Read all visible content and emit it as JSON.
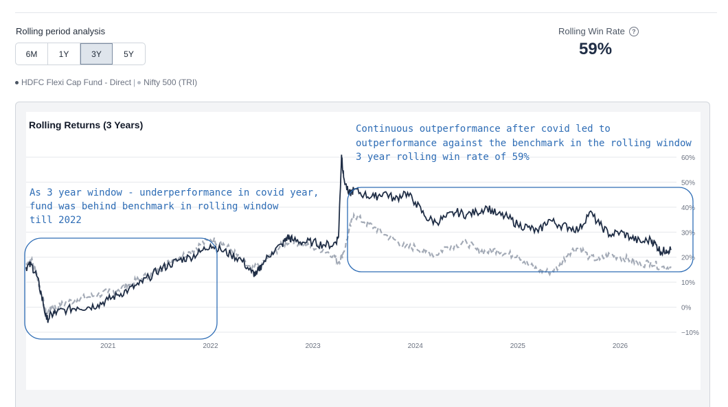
{
  "header": {
    "section_label": "Rolling period analysis",
    "periods": [
      "6M",
      "1Y",
      "3Y",
      "5Y"
    ],
    "active_period": "3Y",
    "win_rate_label": "Rolling Win Rate",
    "win_rate_help": "?",
    "win_rate_value": "59%"
  },
  "legend": {
    "fund": "HDFC Flexi Cap Fund - Direct",
    "separator": "|",
    "benchmark": "Nifty 500 (TRI)"
  },
  "colors": {
    "fund": "#1f2d45",
    "benchmark": "#a3aab6",
    "annotation": "#2d6cb5",
    "grid": "#e5e7eb"
  },
  "annotations": [
    "Continuous outperformance after covid led to",
    "outperformance against the benchmark in the rolling window",
    "3 year rolling win rate of 59%",
    "As 3 year window - underperformance in covid year,",
    "fund was behind benchmark in rolling window",
    "till 2022"
  ],
  "chart_data": {
    "type": "line",
    "title": "Rolling Returns (3 Years)",
    "y_tick_labels": [
      "60%",
      "50%",
      "40%",
      "30%",
      "20%",
      "10%",
      "0%",
      "−10%"
    ],
    "y_ticks": [
      60,
      50,
      40,
      30,
      20,
      10,
      0,
      -10
    ],
    "x_tick_labels": [
      "2021",
      "2022",
      "2023",
      "2024",
      "2025",
      "2026"
    ],
    "x_ticks": [
      2021,
      2022,
      2023,
      2024,
      2025,
      2026
    ],
    "xlim": [
      2020.2,
      2026.55
    ],
    "ylim": [
      -10,
      60
    ],
    "grid": true,
    "series": [
      {
        "name": "HDFC Flexi Cap Fund - Direct",
        "style": "solid",
        "x": [
          2020.2,
          2020.25,
          2020.3,
          2020.35,
          2020.4,
          2020.45,
          2020.5,
          2020.6,
          2020.7,
          2020.8,
          2020.9,
          2021.0,
          2021.1,
          2021.2,
          2021.3,
          2021.4,
          2021.5,
          2021.6,
          2021.7,
          2021.8,
          2021.9,
          2022.0,
          2022.1,
          2022.2,
          2022.3,
          2022.4,
          2022.45,
          2022.5,
          2022.6,
          2022.7,
          2022.75,
          2022.8,
          2022.9,
          2023.0,
          2023.1,
          2023.2,
          2023.25,
          2023.28,
          2023.3,
          2023.35,
          2023.4,
          2023.5,
          2023.6,
          2023.7,
          2023.8,
          2023.9,
          2024.0,
          2024.1,
          2024.2,
          2024.3,
          2024.4,
          2024.5,
          2024.6,
          2024.7,
          2024.8,
          2024.9,
          2025.0,
          2025.1,
          2025.2,
          2025.3,
          2025.4,
          2025.5,
          2025.6,
          2025.7,
          2025.8,
          2025.9,
          2026.0,
          2026.1,
          2026.2,
          2026.3,
          2026.35,
          2026.4,
          2026.45,
          2026.5
        ],
        "y": [
          16,
          17,
          13,
          5,
          -5,
          -3,
          -2,
          -1,
          0,
          0,
          1,
          3,
          5,
          7,
          9,
          12,
          15,
          17,
          19,
          20,
          22,
          25,
          23,
          21,
          19,
          14,
          13,
          17,
          22,
          25,
          28,
          27,
          26,
          26,
          25,
          25,
          28,
          61,
          52,
          45,
          47,
          45,
          44,
          46,
          43,
          46,
          42,
          36,
          34,
          36,
          38,
          37,
          38,
          40,
          37,
          36,
          33,
          32,
          30,
          35,
          33,
          32,
          31,
          38,
          33,
          29,
          30,
          28,
          26,
          27,
          25,
          22,
          23,
          23
        ]
      },
      {
        "name": "Nifty 500 (TRI)",
        "style": "dashed",
        "x": [
          2020.2,
          2020.25,
          2020.3,
          2020.35,
          2020.4,
          2020.45,
          2020.5,
          2020.6,
          2020.7,
          2020.8,
          2020.9,
          2021.0,
          2021.1,
          2021.2,
          2021.3,
          2021.4,
          2021.5,
          2021.6,
          2021.7,
          2021.8,
          2021.9,
          2022.0,
          2022.1,
          2022.2,
          2022.3,
          2022.4,
          2022.5,
          2022.6,
          2022.7,
          2022.8,
          2022.9,
          2023.0,
          2023.1,
          2023.2,
          2023.25,
          2023.3,
          2023.35,
          2023.4,
          2023.5,
          2023.6,
          2023.7,
          2023.8,
          2023.9,
          2024.0,
          2024.1,
          2024.2,
          2024.3,
          2024.4,
          2024.5,
          2024.6,
          2024.7,
          2024.8,
          2024.9,
          2025.0,
          2025.1,
          2025.2,
          2025.3,
          2025.4,
          2025.5,
          2025.6,
          2025.7,
          2025.8,
          2025.9,
          2026.0,
          2026.1,
          2026.2,
          2026.3,
          2026.4,
          2026.5
        ],
        "y": [
          17,
          19,
          14,
          5,
          -3,
          0,
          0,
          2,
          3,
          4,
          5,
          6,
          7,
          9,
          11,
          13,
          15,
          18,
          20,
          22,
          25,
          27,
          26,
          23,
          19,
          15,
          17,
          21,
          25,
          27,
          25,
          24,
          23,
          21,
          18,
          22,
          30,
          37,
          34,
          32,
          29,
          27,
          24,
          24,
          22,
          21,
          24,
          25,
          26,
          23,
          22,
          23,
          21,
          21,
          17,
          15,
          14,
          16,
          22,
          24,
          20,
          19,
          21,
          20,
          19,
          17,
          18,
          16,
          16
        ]
      }
    ]
  }
}
